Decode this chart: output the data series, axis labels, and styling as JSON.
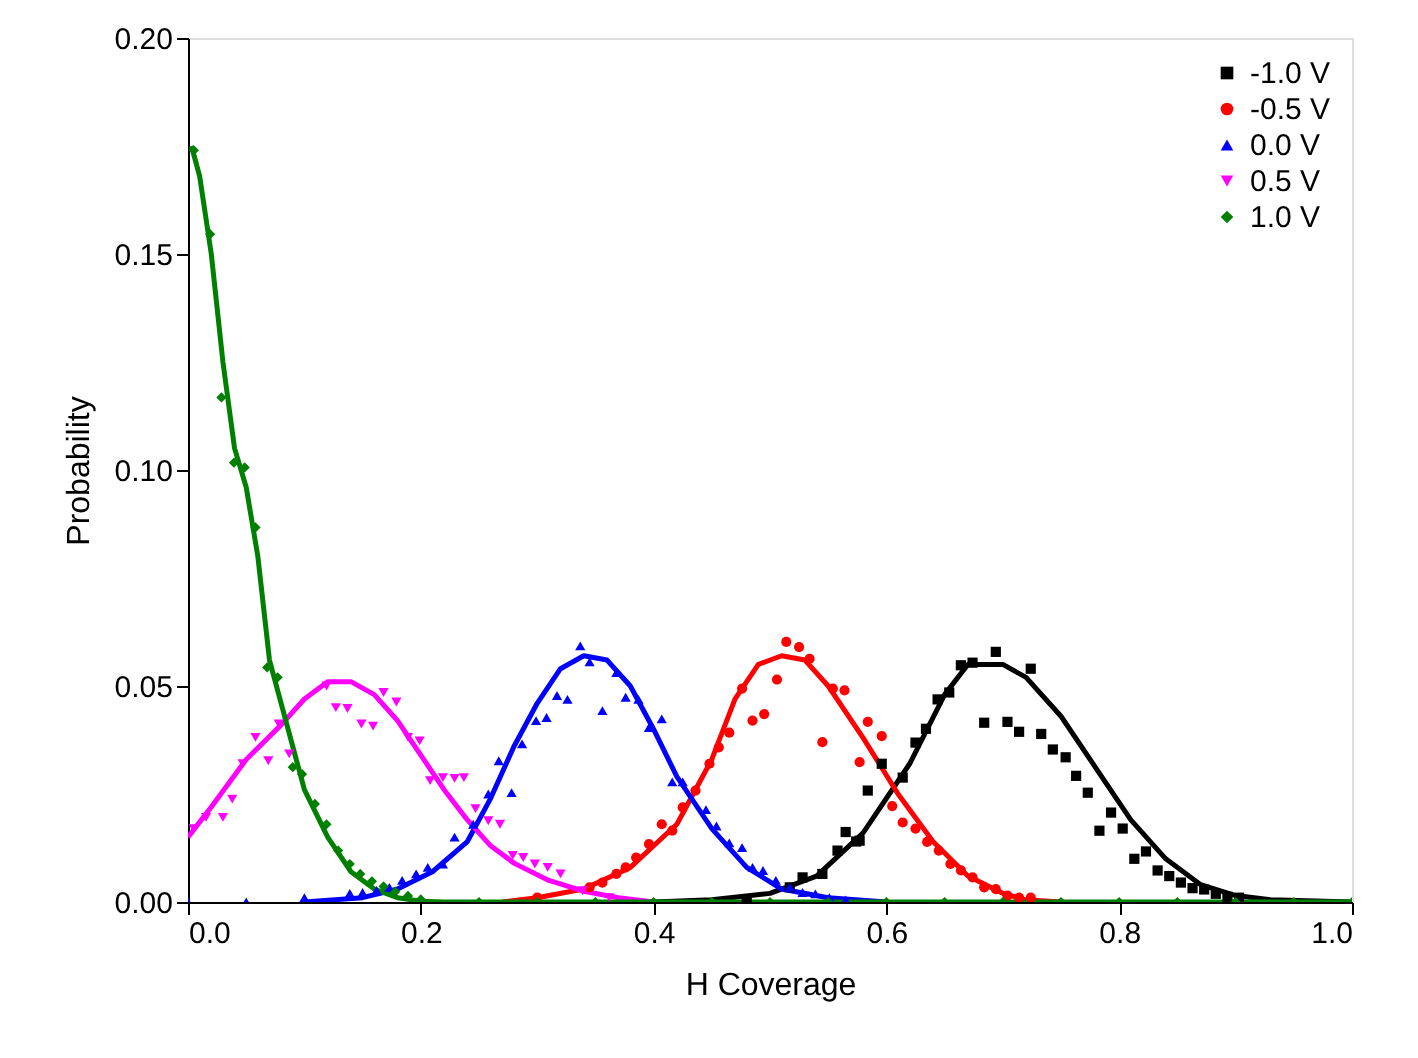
{
  "chart_data": {
    "type": "scatter",
    "xlabel": "H Coverage",
    "ylabel": "Probability",
    "xlim": [
      0,
      1.0
    ],
    "ylim": [
      0,
      0.2
    ],
    "xticks": [
      {
        "value": 0,
        "label": "0.0"
      },
      0.2,
      0.4,
      0.6,
      0.8,
      {
        "value": 1,
        "label": "1.0"
      }
    ],
    "yticks": [
      {
        "value": 0,
        "label": "0.00"
      },
      0.05,
      {
        "value": 0.1,
        "label": "0.10"
      },
      0.15,
      {
        "value": 0.2,
        "label": "0.20"
      }
    ],
    "grid": false,
    "legend": "top right",
    "series": [
      {
        "name": "-1.0 V",
        "type": "scatter",
        "marker": "square",
        "color": "#000000",
        "x": [
          0.48,
          0.517,
          0.528,
          0.545,
          0.558,
          0.565,
          0.574,
          0.577,
          0.584,
          0.596,
          0.614,
          0.625,
          0.634,
          0.644,
          0.654,
          0.664,
          0.674,
          0.684,
          0.694,
          0.704,
          0.714,
          0.724,
          0.733,
          0.743,
          0.754,
          0.763,
          0.773,
          0.783,
          0.793,
          0.803,
          0.813,
          0.823,
          0.833,
          0.843,
          0.853,
          0.863,
          0.873,
          0.883,
          0.893,
          0.903
        ],
        "values": [
          0.0005,
          0.0034,
          0.0057,
          0.0065,
          0.0119,
          0.0162,
          0.014,
          0.0142,
          0.0258,
          0.032,
          0.0288,
          0.0369,
          0.0401,
          0.0469,
          0.0485,
          0.0548,
          0.0554,
          0.0415,
          0.0579,
          0.0417,
          0.0394,
          0.054,
          0.0389,
          0.0353,
          0.0335,
          0.0292,
          0.0253,
          0.0165,
          0.0207,
          0.017,
          0.01,
          0.0117,
          0.0073,
          0.006,
          0.0045,
          0.0032,
          0.0029,
          0.0019,
          0.0012,
          0.001
        ]
      },
      {
        "name": "-0.5 V",
        "type": "scatter",
        "marker": "circle",
        "color": "#ff0000",
        "x": [
          0.3,
          0.345,
          0.356,
          0.368,
          0.376,
          0.385,
          0.396,
          0.407,
          0.416,
          0.425,
          0.436,
          0.448,
          0.456,
          0.465,
          0.476,
          0.485,
          0.495,
          0.506,
          0.514,
          0.525,
          0.534,
          0.545,
          0.554,
          0.564,
          0.577,
          0.584,
          0.596,
          0.605,
          0.614,
          0.625,
          0.635,
          0.645,
          0.655,
          0.664,
          0.674,
          0.684,
          0.694,
          0.704,
          0.714,
          0.724
        ],
        "values": [
          0.001,
          0.0034,
          0.0045,
          0.0065,
          0.008,
          0.0103,
          0.0134,
          0.018,
          0.0165,
          0.0219,
          0.0258,
          0.032,
          0.0358,
          0.0392,
          0.0494,
          0.042,
          0.0435,
          0.0515,
          0.0602,
          0.059,
          0.0563,
          0.037,
          0.0494,
          0.049,
          0.0324,
          0.0417,
          0.0384,
          0.0222,
          0.0184,
          0.017,
          0.0139,
          0.0119,
          0.0088,
          0.0073,
          0.0057,
          0.0034,
          0.003,
          0.0015,
          0.001,
          0.001
        ]
      },
      {
        "name": "0.0 V",
        "type": "scatter",
        "marker": "triangle-up",
        "color": "#0000ff",
        "x": [
          0.0,
          0.05,
          0.1,
          0.139,
          0.15,
          0.162,
          0.173,
          0.184,
          0.196,
          0.206,
          0.219,
          0.229,
          0.245,
          0.258,
          0.267,
          0.278,
          0.287,
          0.299,
          0.308,
          0.317,
          0.326,
          0.337,
          0.345,
          0.356,
          0.368,
          0.376,
          0.387,
          0.396,
          0.407,
          0.416,
          0.425,
          0.445,
          0.454,
          0.465,
          0.476,
          0.485,
          0.494,
          0.505,
          0.517,
          0.528,
          0.539,
          0.551,
          0.565
        ],
        "values": [
          0,
          0,
          0.001,
          0.002,
          0.0022,
          0.0027,
          0.0034,
          0.005,
          0.0065,
          0.008,
          0.0088,
          0.015,
          0.018,
          0.025,
          0.0327,
          0.0253,
          0.0366,
          0.042,
          0.0427,
          0.0478,
          0.0469,
          0.0593,
          0.0556,
          0.0443,
          0.0531,
          0.0474,
          0.0469,
          0.0404,
          0.0424,
          0.0278,
          0.0278,
          0.0214,
          0.0176,
          0.0137,
          0.0126,
          0.008,
          0.0073,
          0.005,
          0.0034,
          0.0022,
          0.0019,
          0.001,
          0.0005
        ]
      },
      {
        "name": "0.5 V",
        "type": "scatter",
        "marker": "triangle-down",
        "color": "#ff00ff",
        "x": [
          0.005,
          0.0155,
          0.03,
          0.038,
          0.047,
          0.058,
          0.069,
          0.078,
          0.087,
          0.119,
          0.127,
          0.137,
          0.149,
          0.159,
          0.168,
          0.179,
          0.189,
          0.199,
          0.208,
          0.219,
          0.229,
          0.237,
          0.247,
          0.258,
          0.268,
          0.279,
          0.288,
          0.298,
          0.309,
          0.32,
          0.339,
          0.362
        ],
        "values": [
          0.017,
          0.0196,
          0.0196,
          0.0238,
          0.032,
          0.0381,
          0.0327,
          0.0412,
          0.0343,
          0.05,
          0.045,
          0.0448,
          0.0412,
          0.0407,
          0.0485,
          0.0463,
          0.0381,
          0.0373,
          0.0281,
          0.0288,
          0.0286,
          0.0288,
          0.0216,
          0.0188,
          0.018,
          0.0108,
          0.0103,
          0.0088,
          0.008,
          0.0065,
          0.0026,
          0.001
        ]
      },
      {
        "name": "1.0 V",
        "type": "scatter",
        "marker": "diamond",
        "color": "#008000",
        "x": [
          0.005,
          0.019,
          0.0287,
          0.0395,
          0.0487,
          0.058,
          0.068,
          0.077,
          0.09,
          0.098,
          0.109,
          0.119,
          0.129,
          0.139,
          0.148,
          0.158,
          0.168,
          0.178,
          0.189,
          0.2,
          0.25,
          0.3,
          0.35,
          0.4,
          0.45,
          0.5,
          0.55,
          0.6,
          0.65,
          0.7,
          0.75,
          0.8,
          0.85,
          0.9,
          0.95,
          1.0
        ],
        "values": [
          0.174,
          0.1546,
          0.1168,
          0.1017,
          0.1006,
          0.0867,
          0.0543,
          0.052,
          0.0312,
          0.0296,
          0.0227,
          0.018,
          0.0119,
          0.0088,
          0.0065,
          0.0048,
          0.0036,
          0.0024,
          0.0014,
          0.0006,
          0,
          0,
          0,
          0,
          0,
          0,
          0,
          0,
          0,
          0,
          0,
          0,
          0,
          0,
          0,
          0
        ]
      },
      {
        "type": "line",
        "line_style": "solid",
        "color": "#000000",
        "x": [
          0.4,
          0.45,
          0.5,
          0.54,
          0.58,
          0.62,
          0.65,
          0.67,
          0.7,
          0.72,
          0.75,
          0.78,
          0.81,
          0.84,
          0.87,
          0.9,
          0.93,
          1.0
        ],
        "values": [
          0,
          0.0005,
          0.002,
          0.006,
          0.016,
          0.032,
          0.048,
          0.055,
          0.055,
          0.052,
          0.043,
          0.031,
          0.019,
          0.01,
          0.004,
          0.0015,
          0.0005,
          0
        ]
      },
      {
        "type": "line",
        "line_style": "solid",
        "color": "#ff0000",
        "x": [
          0.27,
          0.3,
          0.34,
          0.38,
          0.42,
          0.45,
          0.47,
          0.49,
          0.51,
          0.53,
          0.55,
          0.58,
          0.61,
          0.64,
          0.67,
          0.7,
          0.72,
          0.75
        ],
        "values": [
          0,
          0.001,
          0.003,
          0.008,
          0.018,
          0.033,
          0.047,
          0.055,
          0.057,
          0.056,
          0.05,
          0.038,
          0.025,
          0.014,
          0.006,
          0.002,
          0.0005,
          0
        ]
      },
      {
        "type": "line",
        "line_style": "solid",
        "color": "#0000ff",
        "x": [
          0.1,
          0.15,
          0.18,
          0.21,
          0.24,
          0.26,
          0.28,
          0.3,
          0.32,
          0.34,
          0.36,
          0.38,
          0.4,
          0.42,
          0.45,
          0.48,
          0.51,
          0.55,
          0.6
        ],
        "values": [
          0,
          0.001,
          0.003,
          0.007,
          0.014,
          0.024,
          0.036,
          0.046,
          0.054,
          0.057,
          0.056,
          0.05,
          0.04,
          0.029,
          0.017,
          0.008,
          0.003,
          0.001,
          0
        ]
      },
      {
        "type": "line",
        "line_style": "solid",
        "color": "#ff00ff",
        "x": [
          0,
          0.02,
          0.05,
          0.08,
          0.1,
          0.12,
          0.14,
          0.16,
          0.18,
          0.2,
          0.22,
          0.24,
          0.26,
          0.28,
          0.31,
          0.34,
          0.37,
          0.4
        ],
        "values": [
          0.015,
          0.022,
          0.033,
          0.041,
          0.047,
          0.051,
          0.051,
          0.048,
          0.042,
          0.034,
          0.026,
          0.019,
          0.013,
          0.009,
          0.005,
          0.0025,
          0.001,
          0
        ]
      },
      {
        "type": "line",
        "line_style": "solid",
        "color": "#008000",
        "x": [
          0.003,
          0.01,
          0.02,
          0.03,
          0.04,
          0.05,
          0.06,
          0.07,
          0.08,
          0.09,
          0.1,
          0.12,
          0.14,
          0.16,
          0.18,
          0.2,
          0.22,
          1.0
        ],
        "values": [
          0.175,
          0.168,
          0.15,
          0.125,
          0.105,
          0.096,
          0.08,
          0.056,
          0.046,
          0.036,
          0.026,
          0.015,
          0.007,
          0.003,
          0.001,
          0.0002,
          0,
          0
        ]
      }
    ]
  }
}
